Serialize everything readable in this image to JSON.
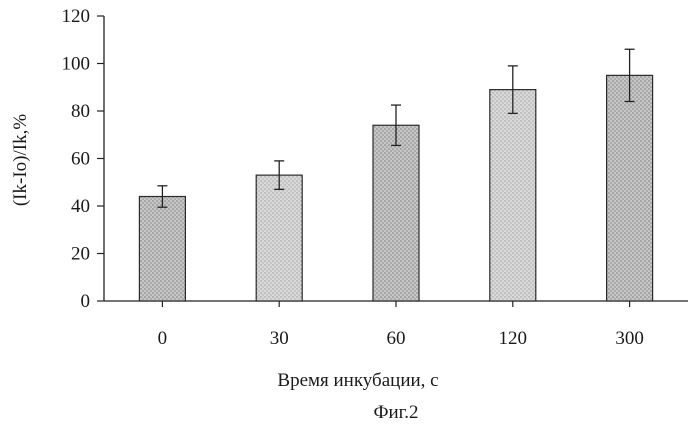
{
  "chart_data": {
    "type": "bar",
    "categories": [
      "0",
      "30",
      "60",
      "120",
      "300"
    ],
    "values": [
      44,
      53,
      74,
      89,
      95
    ],
    "errors": [
      4.5,
      6,
      8.5,
      10,
      11
    ],
    "xlabel": "Время инкубации, с",
    "ylabel": "(Ik-Io)/Ik,%",
    "ylim": [
      0,
      120
    ],
    "yticks": [
      "0",
      "20",
      "40",
      "60",
      "80",
      "100",
      "120"
    ],
    "grid": false,
    "colors": {
      "bar_fill": "#cdcdcd",
      "bar_fill_dark": "#bdbdbd",
      "bar_stroke": "#2a2a2a",
      "axis": "#222222"
    }
  },
  "caption": "Фиг.2"
}
